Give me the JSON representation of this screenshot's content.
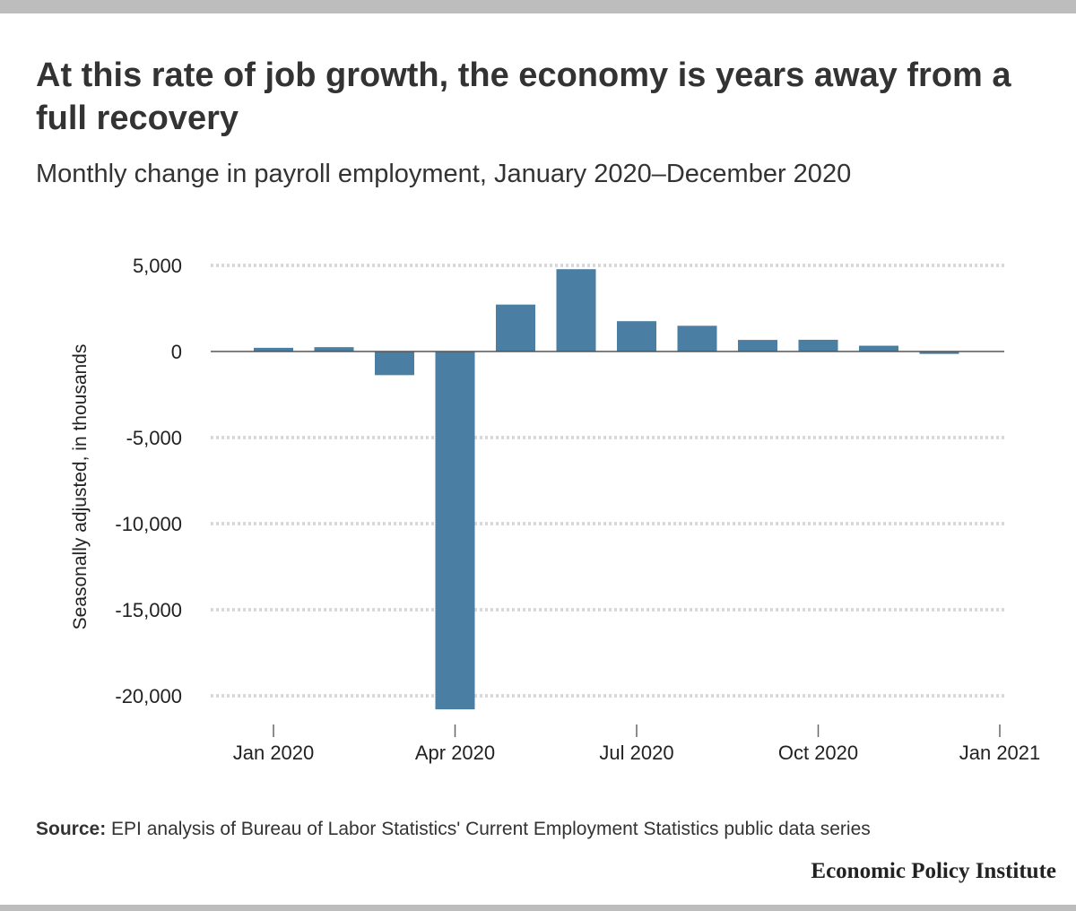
{
  "title": "At this rate of job growth, the economy is years away from a full recovery",
  "subtitle": "Monthly change in payroll employment, January 2020–December 2020",
  "source_label": "Source:",
  "source_text": " EPI analysis of Bureau of Labor Statistics' Current Employment Statistics public data series",
  "logo_text": "Economic Policy Institute",
  "colors": {
    "bar": "#4a7fa3",
    "grid": "#d9d9d9",
    "zero_line": "#555555",
    "text": "#333333"
  },
  "chart_data": {
    "type": "bar",
    "title": "",
    "ylabel": "Seasonally adjusted, in thousands",
    "xlabel": "",
    "ylim": [
      -21500,
      5500
    ],
    "yticks": [
      5000,
      0,
      -5000,
      -10000,
      -15000,
      -20000
    ],
    "ytick_labels": [
      "5,000",
      "0",
      "-5,000",
      "-10,000",
      "-15,000",
      "-20,000"
    ],
    "xtick_labels": [
      "Jan 2020",
      "Apr 2020",
      "Jul 2020",
      "Oct 2020",
      "Jan 2021"
    ],
    "grid": true,
    "categories": [
      "Jan 2020",
      "Feb 2020",
      "Mar 2020",
      "Apr 2020",
      "May 2020",
      "Jun 2020",
      "Jul 2020",
      "Aug 2020",
      "Sep 2020",
      "Oct 2020",
      "Nov 2020",
      "Dec 2020"
    ],
    "values": [
      214,
      251,
      -1373,
      -20787,
      2725,
      4781,
      1761,
      1493,
      672,
      680,
      336,
      -140
    ]
  }
}
